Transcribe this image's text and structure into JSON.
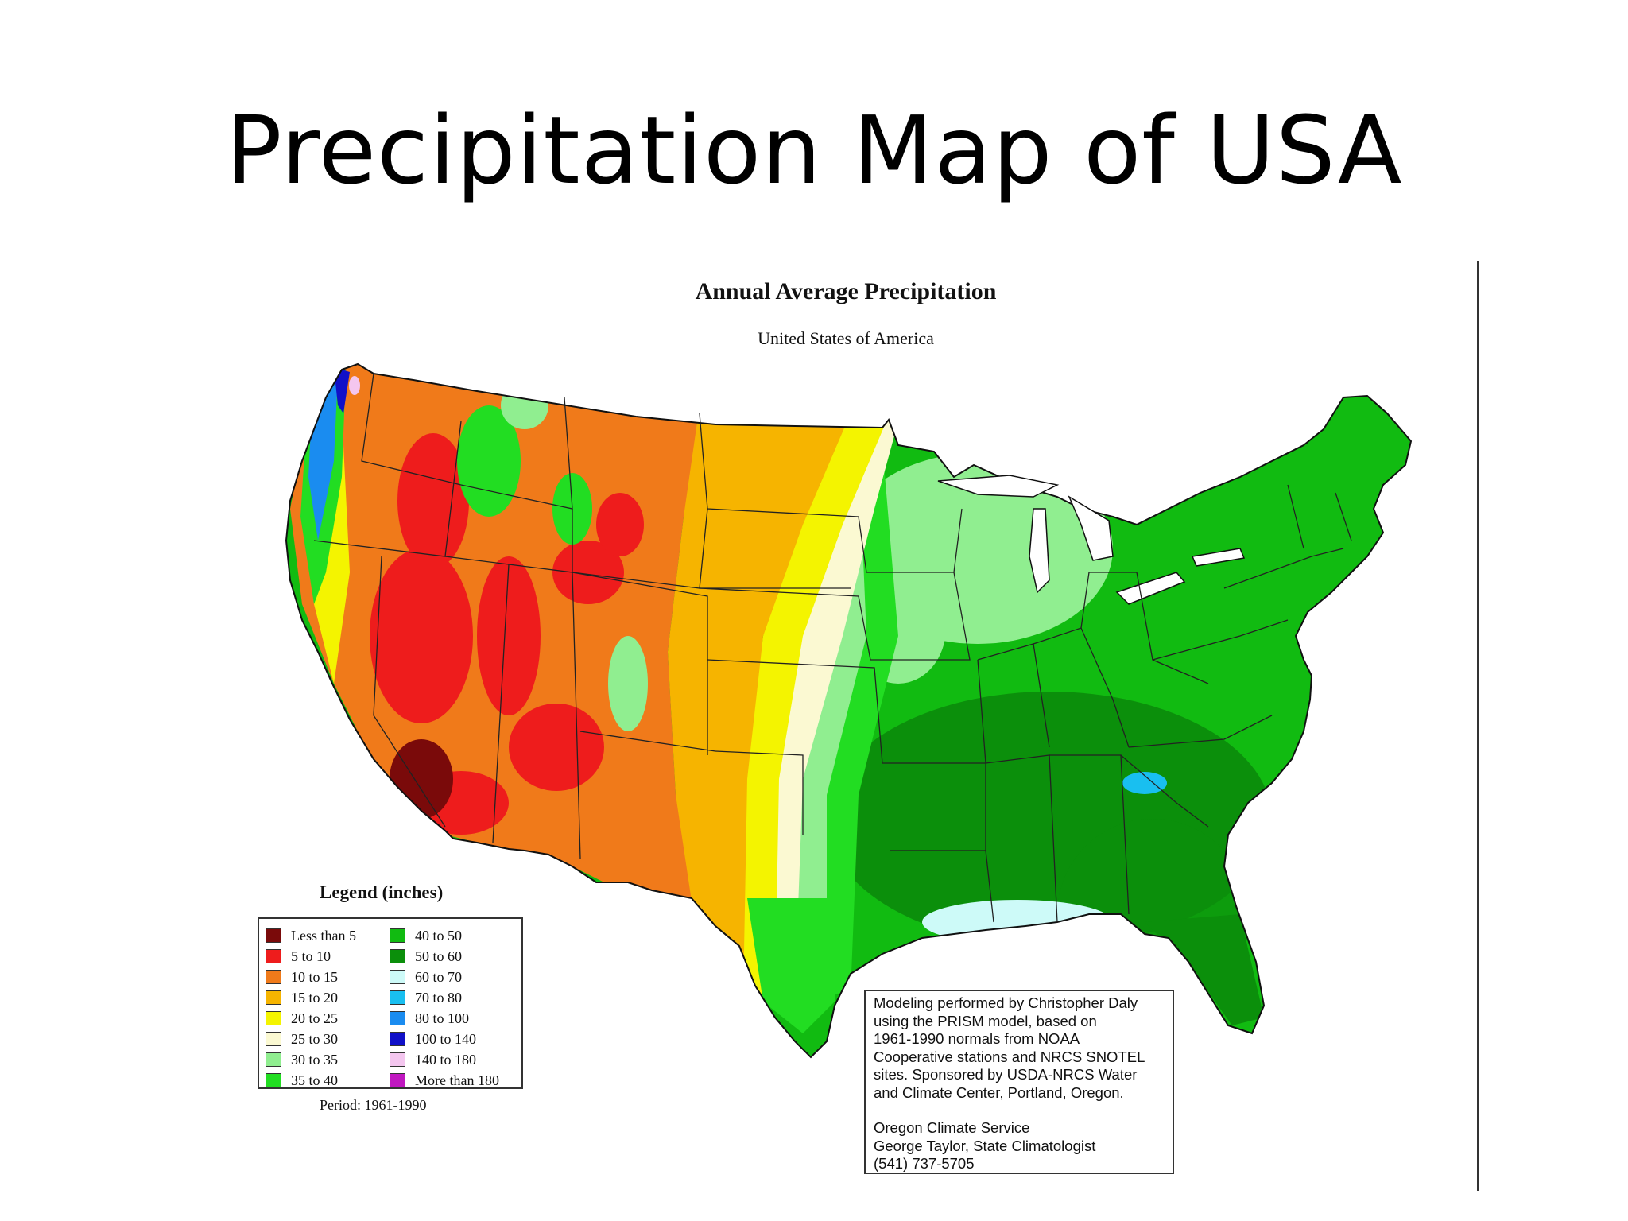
{
  "slide": {
    "title": "Precipitation Map of USA"
  },
  "map": {
    "title": "Annual Average Precipitation",
    "subtitle": "United States of America"
  },
  "legend": {
    "title": "Legend (inches)",
    "period": "Period: 1961-1990",
    "items": [
      {
        "label": "Less than 5",
        "color": "#7a0a0a"
      },
      {
        "label": "5 to 10",
        "color": "#ee1c1c"
      },
      {
        "label": "10 to 15",
        "color": "#f07a1a"
      },
      {
        "label": "15 to 20",
        "color": "#f6b400"
      },
      {
        "label": "20 to 25",
        "color": "#f4f400"
      },
      {
        "label": "25 to 30",
        "color": "#fbf9d2"
      },
      {
        "label": "30 to 35",
        "color": "#90ee90"
      },
      {
        "label": "35 to 40",
        "color": "#22dd22"
      },
      {
        "label": "40 to 50",
        "color": "#11bb11"
      },
      {
        "label": "50 to 60",
        "color": "#0b8f0b"
      },
      {
        "label": "60 to 70",
        "color": "#cdfaf8"
      },
      {
        "label": "70 to 80",
        "color": "#19bff0"
      },
      {
        "label": "80 to 100",
        "color": "#1a8cf0"
      },
      {
        "label": "100 to 140",
        "color": "#1010c8"
      },
      {
        "label": "140 to 180",
        "color": "#f4c6ef"
      },
      {
        "label": "More than 180",
        "color": "#c018c0"
      }
    ]
  },
  "credits": {
    "lines1": [
      "Modeling performed by Christopher Daly",
      "using the PRISM model, based on",
      "1961-1990 normals from NOAA",
      "Cooperative stations and NRCS SNOTEL",
      "sites.  Sponsored by USDA-NRCS Water",
      "and Climate Center, Portland, Oregon."
    ],
    "lines2": [
      "Oregon Climate Service",
      "George Taylor, State Climatologist",
      "(541) 737-5705"
    ]
  }
}
